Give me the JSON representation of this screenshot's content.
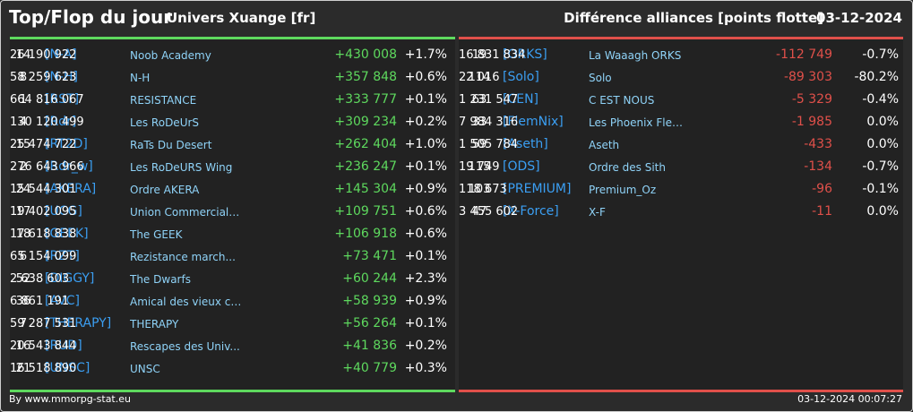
{
  "header": {
    "title": "Top/Flop du jour",
    "server": "Univers Xuange [fr]",
    "subtitle": "Différence alliances [points flotte]",
    "date": "03-12-2024"
  },
  "colors": {
    "top_accent": "#5ed95e",
    "flop_accent": "#e0504a",
    "tag": "#3b9ff3",
    "name": "#8fd3f8"
  },
  "top": [
    {
      "rank": "14",
      "tag": "[N-A]",
      "name": "Noob Academy",
      "points": "26 190 922",
      "diff": "+430 008",
      "pct": "+1.7%"
    },
    {
      "rank": "8",
      "tag": "[N-H]",
      "name": "N-H",
      "points": "58 259 623",
      "diff": "+357 848",
      "pct": "+0.6%"
    },
    {
      "rank": "1",
      "tag": "[RST]",
      "name": "RESISTANCE",
      "points": "664 816 067",
      "diff": "+333 777",
      "pct": "+0.1%"
    },
    {
      "rank": "4",
      "tag": "[Rdr]",
      "name": "Les RoDeUrS",
      "points": "130 120 499",
      "diff": "+309 234",
      "pct": "+0.2%"
    },
    {
      "rank": "15",
      "tag": "[RT2D]",
      "name": "RaTs Du Desert",
      "points": "25 474 722",
      "diff": "+262 404",
      "pct": "+1.0%"
    },
    {
      "rank": "2",
      "tag": "[Rdr_w]",
      "name": "Les RoDeURS Wing",
      "points": "276 643 966",
      "diff": "+236 247",
      "pct": "+0.1%"
    },
    {
      "rank": "24",
      "tag": "[AKERA]",
      "name": "Ordre AKERA",
      "points": "15 544 301",
      "diff": "+145 304",
      "pct": "+0.9%"
    },
    {
      "rank": "17",
      "tag": "[UCG]",
      "name": "Union Commerciale...",
      "points": "19 402 095",
      "diff": "+109 751",
      "pct": "+0.6%"
    },
    {
      "rank": "18",
      "tag": "[GEEK]",
      "name": "The GEEK",
      "points": "17 618 838",
      "diff": "+106 918",
      "pct": "+0.6%"
    },
    {
      "rank": "6",
      "tag": "[RZT]",
      "name": "Rezistance march...",
      "points": "65 154 099",
      "diff": "+73 471",
      "pct": "+0.1%"
    },
    {
      "rank": "52",
      "tag": "[DIGGY]",
      "name": "The Dwarfs",
      "points": "2 638 603",
      "diff": "+60 244",
      "pct": "+2.3%"
    },
    {
      "rank": "36",
      "tag": "[AVC]",
      "name": "Amical des vieux co...",
      "points": "6 861 191",
      "diff": "+58 939",
      "pct": "+0.9%"
    },
    {
      "rank": "7",
      "tag": "[THERAPY]",
      "name": "THERAPY",
      "points": "59 287 531",
      "diff": "+56 264",
      "pct": "+0.1%"
    },
    {
      "rank": "16",
      "tag": "[RUD]",
      "name": "Rescapes des Univ...",
      "points": "20 543 844",
      "diff": "+41 836",
      "pct": "+0.2%"
    },
    {
      "rank": "21",
      "tag": "[UNSC]",
      "name": "UNSC",
      "points": "16 518 890",
      "diff": "+40 779",
      "pct": "+0.3%"
    }
  ],
  "flop": [
    {
      "rank": "19",
      "tag": "[ORKS]",
      "name": "La Waaagh ORKS",
      "points": "16 831 834",
      "diff": "-112 749",
      "pct": "-0.7%"
    },
    {
      "rank": "114",
      "tag": "[Solo]",
      "name": "Solo",
      "points": "22 016",
      "diff": "-89 303",
      "pct": "-80.2%"
    },
    {
      "rank": "63",
      "tag": "[CEN]",
      "name": "C EST NOUS",
      "points": "1 231 547",
      "diff": "-5 329",
      "pct": "-0.4%"
    },
    {
      "rank": "33",
      "tag": "[FlemNix]",
      "name": "Les Phoenix Flem...",
      "points": "7 984 316",
      "diff": "-1 985",
      "pct": "0.0%"
    },
    {
      "rank": "59",
      "tag": "[Aseth]",
      "name": "Aseth",
      "points": "1 505 784",
      "diff": "-433",
      "pct": "0.0%"
    },
    {
      "rank": "115",
      "tag": "[ODS]",
      "name": "Ordre des Sith",
      "points": "19 749",
      "diff": "-134",
      "pct": "-0.7%"
    },
    {
      "rank": "103",
      "tag": "[PREMIUM]",
      "name": "Premium_Oz",
      "points": "118 673",
      "diff": "-96",
      "pct": "-0.1%"
    },
    {
      "rank": "47",
      "tag": "[X-Force]",
      "name": "X-F",
      "points": "3 455 602",
      "diff": "-11",
      "pct": "0.0%"
    }
  ],
  "footer": {
    "credit": "By www.mmorpg-stat.eu",
    "timestamp": "03-12-2024 00:07:27"
  }
}
